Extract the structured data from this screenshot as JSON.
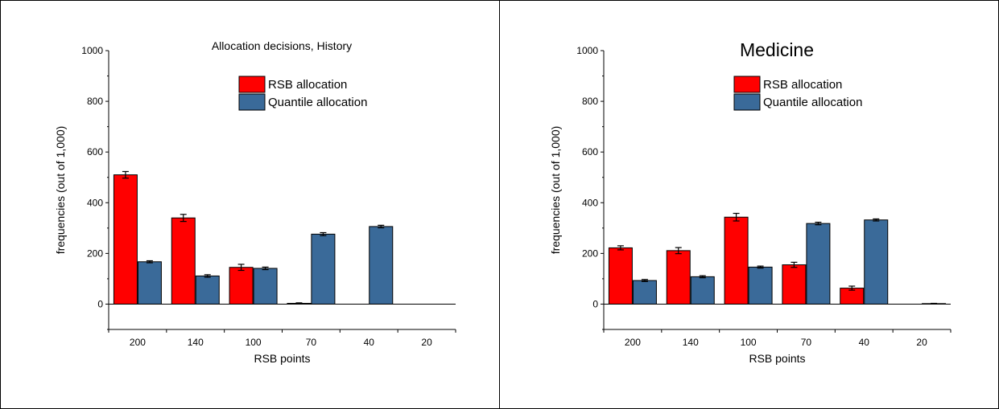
{
  "chart_data": [
    {
      "type": "bar",
      "title": "Allocation decisions, History",
      "xlabel": "RSB points",
      "ylabel": "frequencies (out of 1,000)",
      "categories": [
        "200",
        "140",
        "100",
        "70",
        "40",
        "20"
      ],
      "ylim": [
        -100,
        1000
      ],
      "yticks": [
        "0",
        "200",
        "400",
        "600",
        "800",
        "1000"
      ],
      "grid": false,
      "legend_position": "top-right",
      "series": [
        {
          "name": "RSB allocation",
          "color": "#ff0000",
          "values": [
            510,
            340,
            145,
            3,
            0,
            0
          ],
          "errors": [
            13,
            14,
            12,
            2,
            0,
            0
          ]
        },
        {
          "name": "Quantile allocation",
          "color": "#3a6a99",
          "values": [
            167,
            111,
            141,
            276,
            306,
            0
          ],
          "errors": [
            4,
            5,
            5,
            6,
            5,
            0
          ]
        }
      ]
    },
    {
      "type": "bar",
      "title": "Medicine",
      "xlabel": "RSB points",
      "ylabel": "frequencies (out of 1,000)",
      "categories": [
        "200",
        "140",
        "100",
        "70",
        "40",
        "20"
      ],
      "ylim": [
        -100,
        1000
      ],
      "yticks": [
        "0",
        "200",
        "400",
        "600",
        "800",
        "1000"
      ],
      "grid": false,
      "legend_position": "top-right",
      "series": [
        {
          "name": "RSB allocation",
          "color": "#ff0000",
          "values": [
            222,
            211,
            343,
            155,
            63,
            0
          ],
          "errors": [
            8,
            12,
            15,
            10,
            8,
            0
          ]
        },
        {
          "name": "Quantile allocation",
          "color": "#3a6a99",
          "values": [
            93,
            108,
            146,
            318,
            332,
            2
          ],
          "errors": [
            4,
            4,
            4,
            5,
            4,
            1
          ]
        }
      ]
    }
  ]
}
